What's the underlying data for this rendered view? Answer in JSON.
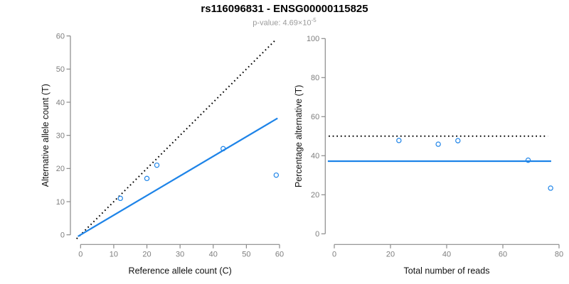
{
  "header": {
    "title": "rs116096831 - ENSG00000115825",
    "subtitle_prefix": "p-value: 4.69×10",
    "subtitle_exponent": "-5"
  },
  "colors": {
    "accent_blue": "#1E84E8",
    "dotted_black": "#000000",
    "axis_gray": "#8A8A8A",
    "tick_text_gray": "#7E7E7E",
    "axis_title_black": "#111111",
    "subtitle_gray": "#9B9B9B"
  },
  "chart_data": [
    {
      "name": "allele-counts-scatter",
      "type": "scatter",
      "xlabel": "Reference allele count (C)",
      "ylabel": "Alternative allele count (T)",
      "xlim": [
        0,
        60
      ],
      "ylim": [
        0,
        60
      ],
      "xticks": [
        0,
        10,
        20,
        30,
        40,
        50,
        60
      ],
      "yticks": [
        0,
        10,
        20,
        30,
        40,
        50,
        60
      ],
      "grid": false,
      "legend": false,
      "points": [
        [
          12,
          11
        ],
        [
          20,
          17
        ],
        [
          23,
          21
        ],
        [
          43,
          26
        ],
        [
          59,
          18
        ]
      ],
      "lines": [
        {
          "name": "identity-line",
          "style": "dotted",
          "color_key": "dotted_black",
          "slope": 1,
          "intercept": 0
        },
        {
          "name": "expected-ratio-line",
          "style": "solid",
          "color_key": "accent_blue",
          "slope": 0.592,
          "intercept": 0
        }
      ]
    },
    {
      "name": "percentage-vs-reads-scatter",
      "type": "scatter",
      "xlabel": "Total number of reads",
      "ylabel": "Percentage alternative (T)",
      "xlim": [
        0,
        80
      ],
      "ylim": [
        0,
        100
      ],
      "xticks": [
        0,
        20,
        40,
        60,
        80
      ],
      "yticks": [
        0,
        20,
        40,
        60,
        80,
        100
      ],
      "grid": false,
      "legend": false,
      "points": [
        [
          23,
          47.8
        ],
        [
          37,
          45.9
        ],
        [
          44,
          47.7
        ],
        [
          69,
          37.7
        ],
        [
          77,
          23.4
        ]
      ],
      "lines": [
        {
          "name": "fifty-percent-line",
          "style": "dotted",
          "color_key": "dotted_black",
          "hline": 50
        },
        {
          "name": "overall-percentage-line",
          "style": "solid",
          "color_key": "accent_blue",
          "hline": 37.2
        }
      ]
    }
  ]
}
